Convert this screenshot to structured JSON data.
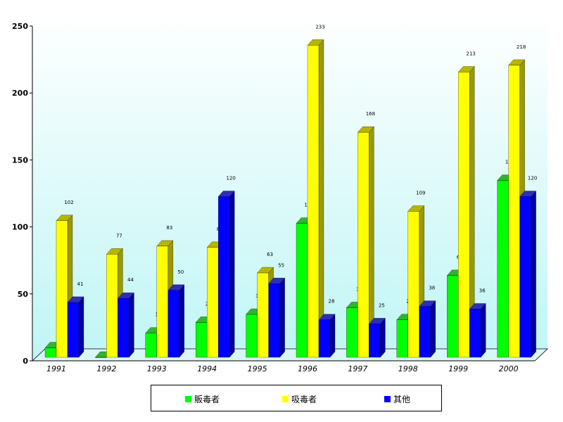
{
  "chart_data": {
    "type": "bar",
    "categories": [
      "1991",
      "1992",
      "1993",
      "1994",
      "1995",
      "1996",
      "1997",
      "1998",
      "1999",
      "2000"
    ],
    "series": [
      {
        "name": "販毒者",
        "color": "#00ff00",
        "side": "#009900",
        "top": "#33cc33",
        "values": [
          7,
          0,
          18,
          26,
          32,
          100,
          37,
          28,
          61,
          132
        ],
        "labels": [
          "7",
          "0",
          "18",
          "26",
          "32",
          "100",
          "37",
          "28",
          "61",
          "132"
        ]
      },
      {
        "name": "吸毒者",
        "color": "#ffff00",
        "side": "#999900",
        "top": "#cccc00",
        "values": [
          102,
          77,
          83,
          82,
          63,
          233,
          168,
          109,
          213,
          218
        ],
        "labels": [
          "102",
          "77",
          "83",
          "82",
          "63",
          "233",
          "168",
          "109",
          "213",
          "218"
        ]
      },
      {
        "name": "其他",
        "color": "#0000ff",
        "side": "#000099",
        "top": "#3333cc",
        "values": [
          41,
          44,
          50,
          120,
          55,
          28,
          25,
          38,
          36,
          120
        ],
        "labels": [
          "41",
          "44",
          "50",
          "120",
          "55",
          "28",
          "25",
          "38",
          "36",
          "120"
        ]
      }
    ],
    "yticks": [
      "0",
      "50",
      "100",
      "150",
      "200",
      "250"
    ],
    "ylim": [
      0,
      250
    ],
    "grid": false,
    "legend_position": "bottom",
    "title": "",
    "xlabel": "",
    "ylabel": ""
  }
}
